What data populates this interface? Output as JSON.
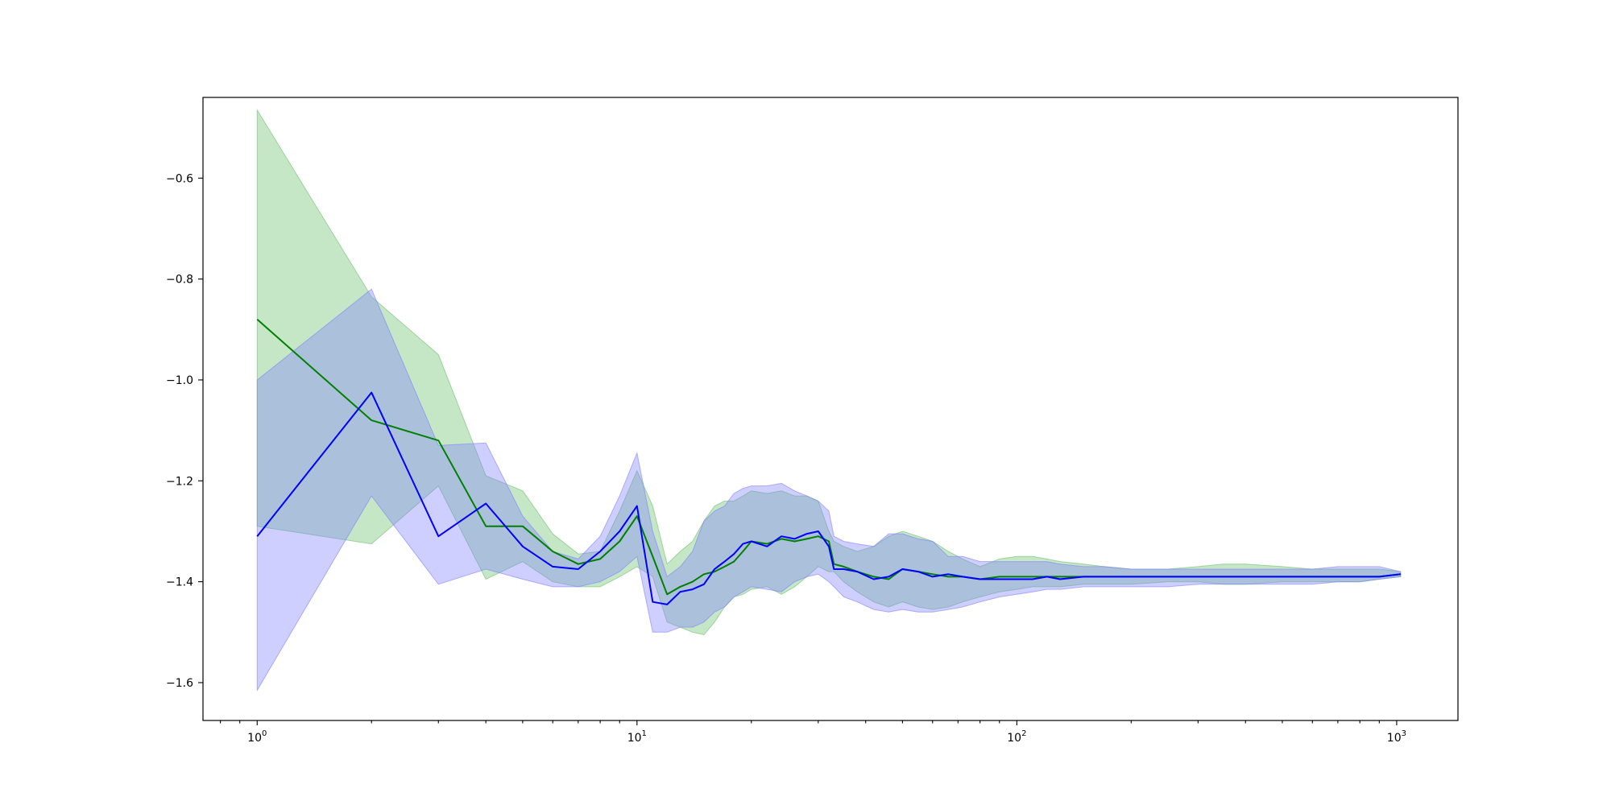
{
  "chart_data": {
    "type": "line",
    "title": "",
    "xlabel": "",
    "ylabel": "",
    "xscale": "log",
    "xlim": [
      0.72,
      1450
    ],
    "ylim": [
      -1.675,
      -0.44
    ],
    "grid": false,
    "legend": "none",
    "x_ticks": [
      {
        "value": 1,
        "base": "10",
        "exp": "0"
      },
      {
        "value": 10,
        "base": "10",
        "exp": "1"
      },
      {
        "value": 100,
        "base": "10",
        "exp": "2"
      },
      {
        "value": 1000,
        "base": "10",
        "exp": "3"
      }
    ],
    "y_ticks": [
      {
        "value": -0.6,
        "label": "−0.6"
      },
      {
        "value": -0.8,
        "label": "−0.8"
      },
      {
        "value": -1.0,
        "label": "−1.0"
      },
      {
        "value": -1.2,
        "label": "−1.2"
      },
      {
        "value": -1.4,
        "label": "−1.4"
      },
      {
        "value": -1.6,
        "label": "−1.6"
      }
    ],
    "series": [
      {
        "color": "#008000",
        "band_color": "#6abf6a",
        "x": [
          1,
          2,
          3,
          4,
          5,
          6,
          7,
          8,
          9,
          10,
          11,
          12,
          13,
          14,
          15,
          16,
          17,
          18,
          19,
          20,
          22,
          24,
          26,
          28,
          30,
          32,
          33,
          35,
          38,
          42,
          46,
          50,
          55,
          60,
          66,
          72,
          80,
          90,
          100,
          110,
          120,
          130,
          150,
          170,
          200,
          250,
          300,
          350,
          400,
          500,
          600,
          700,
          800,
          900,
          1024
        ],
        "y": [
          -0.88,
          -1.08,
          -1.12,
          -1.29,
          -1.29,
          -1.34,
          -1.365,
          -1.355,
          -1.32,
          -1.27,
          -1.35,
          -1.425,
          -1.41,
          -1.4,
          -1.385,
          -1.38,
          -1.37,
          -1.36,
          -1.34,
          -1.32,
          -1.325,
          -1.315,
          -1.32,
          -1.315,
          -1.31,
          -1.32,
          -1.365,
          -1.37,
          -1.38,
          -1.39,
          -1.395,
          -1.375,
          -1.38,
          -1.385,
          -1.39,
          -1.39,
          -1.395,
          -1.39,
          -1.39,
          -1.39,
          -1.39,
          -1.39,
          -1.39,
          -1.39,
          -1.39,
          -1.39,
          -1.39,
          -1.39,
          -1.39,
          -1.39,
          -1.39,
          -1.39,
          -1.39,
          -1.39,
          -1.385
        ],
        "lower": [
          -1.29,
          -1.325,
          -1.21,
          -1.395,
          -1.36,
          -1.4,
          -1.41,
          -1.41,
          -1.39,
          -1.37,
          -1.39,
          -1.48,
          -1.49,
          -1.5,
          -1.505,
          -1.48,
          -1.45,
          -1.43,
          -1.425,
          -1.415,
          -1.41,
          -1.425,
          -1.41,
          -1.39,
          -1.37,
          -1.38,
          -1.38,
          -1.4,
          -1.42,
          -1.44,
          -1.45,
          -1.44,
          -1.45,
          -1.455,
          -1.45,
          -1.44,
          -1.43,
          -1.42,
          -1.415,
          -1.41,
          -1.41,
          -1.41,
          -1.405,
          -1.405,
          -1.405,
          -1.4,
          -1.4,
          -1.405,
          -1.405,
          -1.4,
          -1.4,
          -1.4,
          -1.4,
          -1.395,
          -1.39
        ],
        "upper": [
          -0.465,
          -0.835,
          -0.95,
          -1.19,
          -1.22,
          -1.305,
          -1.345,
          -1.34,
          -1.26,
          -1.18,
          -1.25,
          -1.365,
          -1.34,
          -1.32,
          -1.28,
          -1.25,
          -1.24,
          -1.24,
          -1.23,
          -1.22,
          -1.225,
          -1.22,
          -1.23,
          -1.23,
          -1.24,
          -1.3,
          -1.32,
          -1.33,
          -1.34,
          -1.33,
          -1.31,
          -1.3,
          -1.31,
          -1.32,
          -1.34,
          -1.355,
          -1.37,
          -1.355,
          -1.35,
          -1.35,
          -1.355,
          -1.36,
          -1.365,
          -1.37,
          -1.375,
          -1.375,
          -1.37,
          -1.365,
          -1.365,
          -1.37,
          -1.375,
          -1.375,
          -1.375,
          -1.375,
          -1.38
        ]
      },
      {
        "color": "#0000ff",
        "band_color": "#8080ff",
        "x": [
          1,
          2,
          3,
          4,
          5,
          6,
          7,
          8,
          9,
          10,
          11,
          12,
          13,
          14,
          15,
          16,
          17,
          18,
          19,
          20,
          22,
          24,
          26,
          28,
          30,
          32,
          33,
          35,
          38,
          42,
          46,
          50,
          55,
          60,
          66,
          72,
          80,
          90,
          100,
          110,
          120,
          130,
          150,
          170,
          200,
          250,
          300,
          350,
          400,
          500,
          600,
          700,
          800,
          900,
          1024
        ],
        "y": [
          -1.31,
          -1.025,
          -1.31,
          -1.245,
          -1.33,
          -1.37,
          -1.375,
          -1.34,
          -1.3,
          -1.25,
          -1.44,
          -1.445,
          -1.42,
          -1.415,
          -1.405,
          -1.375,
          -1.36,
          -1.345,
          -1.325,
          -1.32,
          -1.33,
          -1.31,
          -1.315,
          -1.305,
          -1.3,
          -1.33,
          -1.375,
          -1.375,
          -1.38,
          -1.395,
          -1.39,
          -1.375,
          -1.38,
          -1.39,
          -1.385,
          -1.39,
          -1.395,
          -1.395,
          -1.395,
          -1.395,
          -1.39,
          -1.395,
          -1.39,
          -1.39,
          -1.39,
          -1.39,
          -1.39,
          -1.39,
          -1.39,
          -1.39,
          -1.39,
          -1.39,
          -1.39,
          -1.39,
          -1.385
        ],
        "lower": [
          -1.615,
          -1.23,
          -1.405,
          -1.375,
          -1.395,
          -1.41,
          -1.41,
          -1.4,
          -1.38,
          -1.35,
          -1.5,
          -1.5,
          -1.49,
          -1.49,
          -1.48,
          -1.46,
          -1.45,
          -1.43,
          -1.42,
          -1.41,
          -1.415,
          -1.42,
          -1.4,
          -1.39,
          -1.385,
          -1.4,
          -1.41,
          -1.43,
          -1.44,
          -1.455,
          -1.46,
          -1.455,
          -1.46,
          -1.46,
          -1.455,
          -1.45,
          -1.44,
          -1.43,
          -1.425,
          -1.42,
          -1.415,
          -1.415,
          -1.41,
          -1.41,
          -1.41,
          -1.41,
          -1.405,
          -1.405,
          -1.405,
          -1.405,
          -1.405,
          -1.4,
          -1.4,
          -1.395,
          -1.39
        ],
        "upper": [
          -1.0,
          -0.82,
          -1.13,
          -1.125,
          -1.27,
          -1.34,
          -1.355,
          -1.31,
          -1.23,
          -1.145,
          -1.3,
          -1.39,
          -1.37,
          -1.34,
          -1.28,
          -1.26,
          -1.25,
          -1.225,
          -1.215,
          -1.21,
          -1.21,
          -1.205,
          -1.22,
          -1.23,
          -1.24,
          -1.26,
          -1.31,
          -1.32,
          -1.325,
          -1.33,
          -1.305,
          -1.305,
          -1.315,
          -1.32,
          -1.35,
          -1.35,
          -1.36,
          -1.36,
          -1.36,
          -1.36,
          -1.36,
          -1.365,
          -1.37,
          -1.37,
          -1.375,
          -1.375,
          -1.375,
          -1.375,
          -1.375,
          -1.375,
          -1.375,
          -1.37,
          -1.37,
          -1.37,
          -1.38
        ]
      }
    ]
  }
}
